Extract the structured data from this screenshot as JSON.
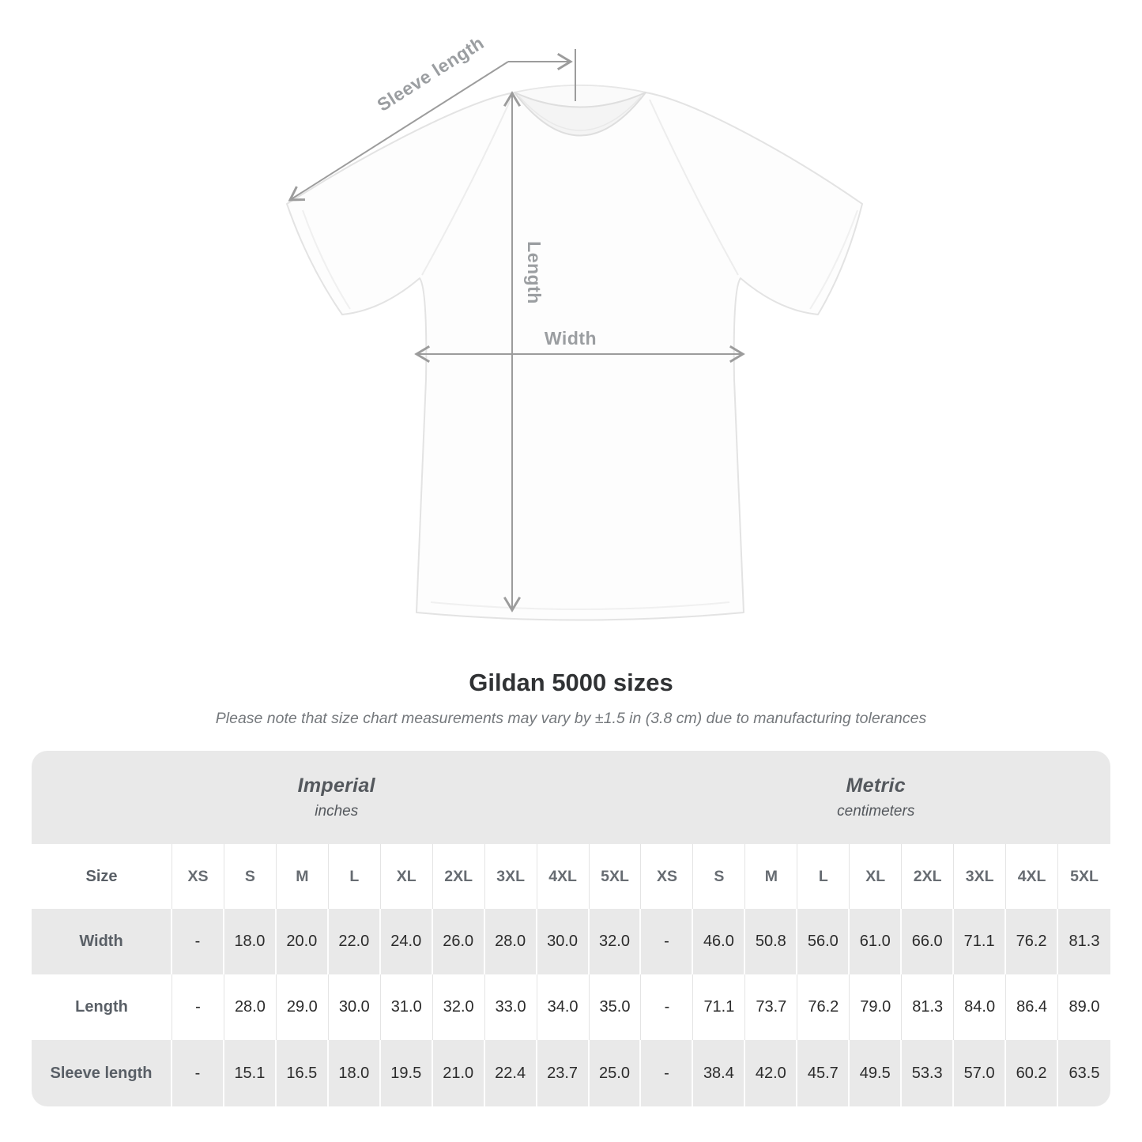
{
  "diagram": {
    "sleeve_length_label": "Sleeve length",
    "length_label": "Length",
    "width_label": "Width"
  },
  "title": "Gildan 5000 sizes",
  "subtitle": "Please note that size chart measurements may vary by ±1.5 in (3.8 cm) due to manufacturing tolerances",
  "table": {
    "unit_groups": [
      {
        "label": "Imperial",
        "sublabel": "inches"
      },
      {
        "label": "Metric",
        "sublabel": "centimeters"
      }
    ],
    "size_header": "Size",
    "sizes": [
      "XS",
      "S",
      "M",
      "L",
      "XL",
      "2XL",
      "3XL",
      "4XL",
      "5XL"
    ],
    "rows": [
      {
        "label": "Width",
        "imperial": [
          "-",
          "18.0",
          "20.0",
          "22.0",
          "24.0",
          "26.0",
          "28.0",
          "30.0",
          "32.0"
        ],
        "metric": [
          "-",
          "46.0",
          "50.8",
          "56.0",
          "61.0",
          "66.0",
          "71.1",
          "76.2",
          "81.3"
        ]
      },
      {
        "label": "Length",
        "imperial": [
          "-",
          "28.0",
          "29.0",
          "30.0",
          "31.0",
          "32.0",
          "33.0",
          "34.0",
          "35.0"
        ],
        "metric": [
          "-",
          "71.1",
          "73.7",
          "76.2",
          "79.0",
          "81.3",
          "84.0",
          "86.4",
          "89.0"
        ]
      },
      {
        "label": "Sleeve length",
        "imperial": [
          "-",
          "15.1",
          "16.5",
          "18.0",
          "19.5",
          "21.0",
          "22.4",
          "23.7",
          "25.0"
        ],
        "metric": [
          "-",
          "38.4",
          "42.0",
          "45.7",
          "49.5",
          "53.3",
          "57.0",
          "60.2",
          "63.5"
        ]
      }
    ]
  },
  "colors": {
    "table_band": "#e9e9e9",
    "dimension_lines": "#9c9c9c",
    "value_text": "#2b2b2b"
  }
}
